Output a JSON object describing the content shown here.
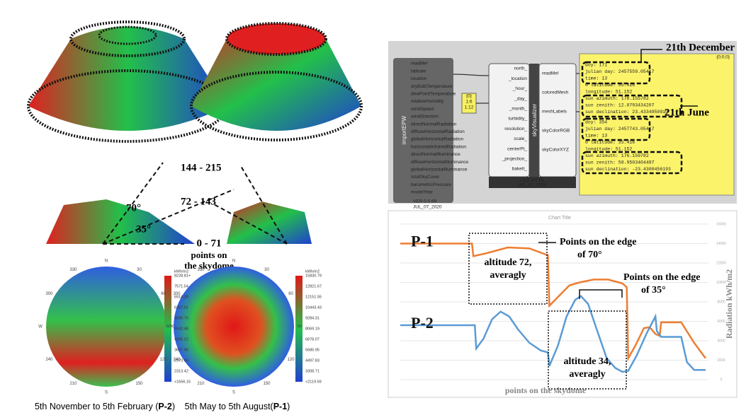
{
  "left": {
    "section_labels": {
      "top": "144 - 215",
      "mid": "72 - 143",
      "a70": "70°",
      "a35": "35°",
      "low": "0 - 71",
      "pts1": "points on",
      "pts2": "the skydome"
    },
    "ring_labels": [
      "N",
      "30",
      "60",
      "90",
      "120",
      "150",
      "S",
      "210",
      "240",
      "W",
      "300",
      "330"
    ],
    "legend_left": [
      "kWh/m2",
      "8228.81+",
      "7571.54",
      "6914.28",
      "6257.01",
      "5599.75",
      "4942.48",
      "4285.22",
      "3627.95",
      "2970.69",
      "2313.42",
      "<1656.15"
    ],
    "legend_right": [
      "kWh/m2",
      "15830.79",
      "12821.67",
      "12151.55",
      "10443.43",
      "9284.31",
      "8069.19",
      "6878.07",
      "5686.95",
      "4497.83",
      "3308.71",
      "<2119.59"
    ],
    "caption_left": {
      "text": "5th November to 5th February (",
      "bold": "P-2",
      "end": ")"
    },
    "caption_right": {
      "text": "5th May to 5th August(",
      "bold": "P-1",
      "end": ")"
    }
  },
  "grasshopper": {
    "import_name": "importEPW",
    "import_inputs": [
      "readMe!",
      "latitude",
      "location",
      "dryBulbTemperature",
      "dewPointTemperature",
      "relativeHumidity",
      "windSpeed",
      "windDirection",
      "directNormalRadiation",
      "diffuseHorizontalRadiation",
      "globalHorizontalRadiation",
      "horizontalInfraredRadiation",
      "directNormalIlluminance",
      "diffuseHorizontalIlluminance",
      "globalHorizontalIlluminance",
      "totalSkyCover",
      "barometricPressure",
      "modelYear"
    ],
    "import_footer": [
      "VER 0.0.69",
      "JUL_07_2020"
    ],
    "sky_name": "skyVisualizer",
    "sky_inputs": [
      "north_",
      "_location",
      "_hour_",
      "_day_",
      "_month_",
      "turbidity_",
      "resolution_",
      "scale_",
      "centerPt_",
      "_projection_",
      "bakeIt_"
    ],
    "sky_outputs": [
      "readMe!",
      "coloredMesh",
      "meshLabels",
      "skyColorRGB",
      "skyColorXYZ"
    ],
    "sky_footer": [
      "VER 0.0.69",
      "JUL_07_2020"
    ],
    "number_panel": [
      "{0}",
      "1:6",
      "1:12"
    ],
    "panel_header": "{0;0;0}",
    "panel_lines": [
      "doy: 171",
      "julian day: 2457559.05417",
      "time: 13",
      "0 latitude: 35.416",
      "longitude: 51.152",
      "sun azimuth: 178.155782",
      "sun zenith: 12.0793434207",
      "sun declination: 23.4334950910",
      "doy: 354",
      "julian day: 2457743.05417",
      "time: 13",
      "0 latitude: 35.416",
      "longitude: 51.152",
      "sun azimuth: 176.159782",
      "sun zenith: 58.9503404487",
      "sun declination: -23.4300456193"
    ],
    "label_dec": "21th December",
    "label_jun": "21th June"
  },
  "chart_data": {
    "type": "line",
    "title": "Chart Title",
    "y_label": "Radiation kWh/m2",
    "x_label": "points on the skydome",
    "xlim": [
      0,
      215
    ],
    "ylim": [
      0,
      16000
    ],
    "yticks": [
      0,
      2000,
      4000,
      6000,
      8000,
      10000,
      12000,
      14000,
      16000
    ],
    "grid": true,
    "series": [
      {
        "name": "P-1",
        "color": "#ed7d31",
        "x": [
          0,
          50,
          51,
          60,
          75,
          90,
          103,
          104,
          110,
          118,
          125,
          135,
          145,
          155,
          158,
          159,
          164,
          170,
          174,
          178,
          181,
          182,
          196,
          205,
          213
        ],
        "values": [
          14000,
          14000,
          12700,
          13000,
          13600,
          13500,
          12800,
          7600,
          8500,
          9700,
          10000,
          10300,
          10300,
          9900,
          9500,
          2200,
          3500,
          5300,
          5400,
          4700,
          4500,
          5900,
          5900,
          3800,
          2200
        ]
      },
      {
        "name": "P-2",
        "color": "#5b9bd5",
        "x": [
          0,
          52,
          53,
          58,
          64,
          70,
          76,
          82,
          90,
          98,
          103,
          104,
          110,
          116,
          122,
          126,
          131,
          137,
          144,
          150,
          155,
          159,
          165,
          172,
          178,
          179,
          182,
          196,
          200,
          205,
          213
        ],
        "values": [
          5600,
          5600,
          3200,
          4200,
          6200,
          7000,
          6500,
          5200,
          3800,
          3000,
          2800,
          1400,
          3500,
          6500,
          8200,
          8600,
          7800,
          5200,
          2200,
          1200,
          800,
          900,
          2500,
          4800,
          6500,
          5000,
          4400,
          4400,
          1800,
          1000,
          1000
        ]
      }
    ],
    "annotations": {
      "edge70a": "Points on the edge",
      "edge70b": "of 70°",
      "edge35a": "Points on the edge",
      "edge35b": "of 35°",
      "alt72a": "altitude 72,",
      "alt72b": "averagly",
      "alt34a": "altitude 34,",
      "alt34b": "averagly"
    }
  }
}
